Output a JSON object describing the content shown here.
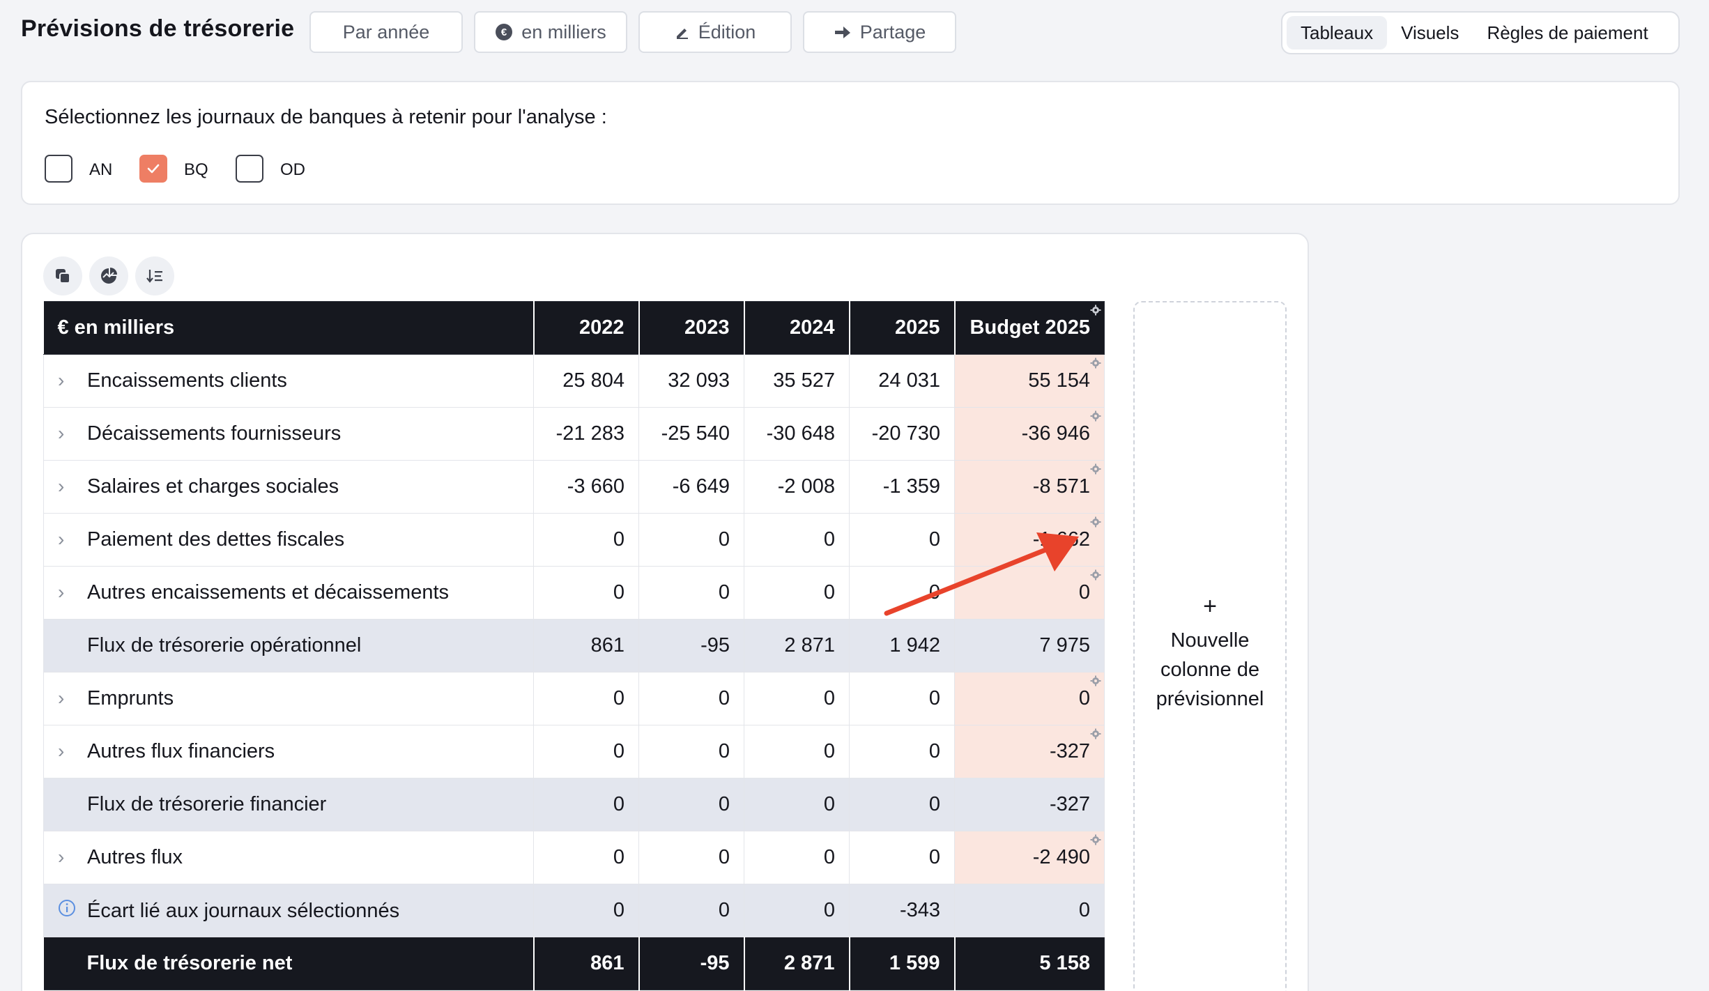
{
  "header": {
    "title": "Prévisions de trésorerie",
    "buttons": {
      "par_annee": "Par année",
      "en_milliers": "en milliers",
      "edition": "Édition",
      "partage": "Partage"
    },
    "view_tabs": [
      "Tableaux",
      "Visuels",
      "Règles de paiement"
    ],
    "active_tab": "Tableaux"
  },
  "journals": {
    "prompt": "Sélectionnez les journaux de banques à retenir pour l'analyse :",
    "items": [
      {
        "label": "AN",
        "checked": false
      },
      {
        "label": "BQ",
        "checked": true
      },
      {
        "label": "OD",
        "checked": false
      }
    ]
  },
  "toolbar_icons": [
    "copy-icon",
    "chart-icon",
    "sort-icon"
  ],
  "table": {
    "corner": "€ en milliers",
    "columns": [
      "2022",
      "2023",
      "2024",
      "2025",
      "Budget 2025"
    ],
    "rows": [
      {
        "label": "Encaissements clients",
        "values": [
          "25 804",
          "32 093",
          "35 527",
          "24 031",
          "55 154"
        ],
        "type": "expandable"
      },
      {
        "label": "Décaissements fournisseurs",
        "values": [
          "-21 283",
          "-25 540",
          "-30 648",
          "-20 730",
          "-36 946"
        ],
        "type": "expandable"
      },
      {
        "label": "Salaires et charges sociales",
        "values": [
          "-3 660",
          "-6 649",
          "-2 008",
          "-1 359",
          "-8 571"
        ],
        "type": "expandable"
      },
      {
        "label": "Paiement des dettes fiscales",
        "values": [
          "0",
          "0",
          "0",
          "0",
          "-1 662"
        ],
        "type": "expandable"
      },
      {
        "label": "Autres encaissements et décaissements",
        "values": [
          "0",
          "0",
          "0",
          "0",
          "0"
        ],
        "type": "expandable"
      },
      {
        "label": "Flux de trésorerie opérationnel",
        "values": [
          "861",
          "-95",
          "2 871",
          "1 942",
          "7 975"
        ],
        "type": "subtotal"
      },
      {
        "label": "Emprunts",
        "values": [
          "0",
          "0",
          "0",
          "0",
          "0"
        ],
        "type": "expandable"
      },
      {
        "label": "Autres flux financiers",
        "values": [
          "0",
          "0",
          "0",
          "0",
          "-327"
        ],
        "type": "expandable"
      },
      {
        "label": "Flux de trésorerie financier",
        "values": [
          "0",
          "0",
          "0",
          "0",
          "-327"
        ],
        "type": "subtotal"
      },
      {
        "label": "Autres flux",
        "values": [
          "0",
          "0",
          "0",
          "0",
          "-2 490"
        ],
        "type": "expandable"
      },
      {
        "label": "Écart lié aux journaux sélectionnés",
        "values": [
          "0",
          "0",
          "0",
          "-343",
          "0"
        ],
        "type": "info"
      },
      {
        "label": "Flux de trésorerie net",
        "values": [
          "861",
          "-95",
          "2 871",
          "1 599",
          "5 158"
        ],
        "type": "net"
      }
    ]
  },
  "new_column": {
    "plus": "+",
    "label": "Nouvelle colonne de prévisionnel"
  },
  "colors": {
    "accent": "#ee7e64",
    "annotation_arrow": "#e8432b",
    "header_dark": "#16181f",
    "budget_cell": "#fbe6df",
    "subtotal_row": "#e3e6ee"
  }
}
